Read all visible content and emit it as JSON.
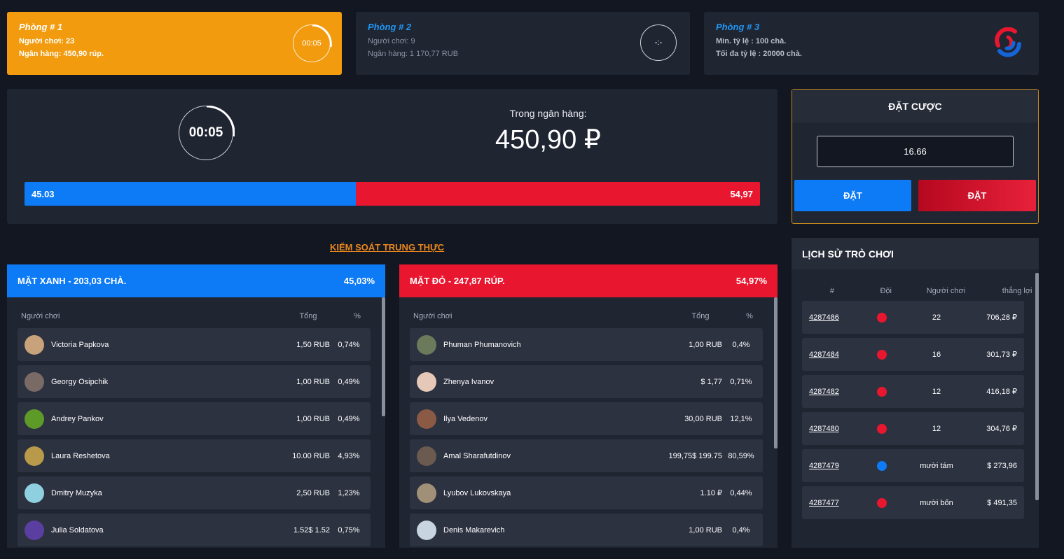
{
  "rooms": [
    {
      "title": "Phòng # 1",
      "line1": "Người chơi: 23",
      "line2": "Ngân hàng: 450,90 rúp.",
      "timer": "00:05"
    },
    {
      "title": "Phòng # 2",
      "line1": "Người chơi: 9",
      "line2": "Ngân hàng: 1 170,77 RUB",
      "timer": "-:-"
    },
    {
      "title": "Phòng # 3",
      "line1": "Min. tỷ lệ : 100 chà.",
      "line2": "Tối đa tỷ lệ : 20000 chà."
    }
  ],
  "main": {
    "timer": "00:05",
    "bank_label": "Trong ngân hàng:",
    "bank_value": "450,90 ₽",
    "blue_value": "45.03",
    "red_value": "54,97",
    "blue_fraction": 0.4503
  },
  "bet": {
    "title": "ĐẶT CƯỢC",
    "amount": "16.66",
    "blue_button": "ĐẶT",
    "red_button": "ĐẶT"
  },
  "honest_link": "KIỂM SOÁT TRUNG THỰC",
  "teams": {
    "blue": {
      "title": "MẶT XANH - 203,03 CHÀ.",
      "percent": "45,03%",
      "col_player": "Người chơi",
      "col_total": "Tổng",
      "col_pct": "%",
      "players": [
        {
          "name": "Victoria Papkova",
          "total": "1,50 RUB",
          "pct": "0,74%",
          "color": "#c8a27a"
        },
        {
          "name": "Georgy Osipchik",
          "total": "1,00 RUB",
          "pct": "0,49%",
          "color": "#7a6a66"
        },
        {
          "name": "Andrey Pankov",
          "total": "1,00 RUB",
          "pct": "0,49%",
          "color": "#5e9a28"
        },
        {
          "name": "Laura Reshetova",
          "total": "10.00 RUB",
          "pct": "4,93%",
          "color": "#b89a4a"
        },
        {
          "name": "Dmitry Muzyka",
          "total": "2,50 RUB",
          "pct": "1,23%",
          "color": "#8fd0e0"
        },
        {
          "name": "Julia Soldatova",
          "total": "1.52$ 1.52",
          "pct": "0,75%",
          "color": "#5a3fa0"
        }
      ]
    },
    "red": {
      "title": "MẶT ĐỎ - 247,87 RÚP.",
      "percent": "54,97%",
      "col_player": "Người chơi",
      "col_total": "Tổng",
      "col_pct": "%",
      "players": [
        {
          "name": "Phuman Phumanovich",
          "total": "1,00 RUB",
          "pct": "0,4%",
          "color": "#6b7a5a"
        },
        {
          "name": "Zhenya Ivanov",
          "total": "$ 1,77",
          "pct": "0,71%",
          "color": "#e6c8b8"
        },
        {
          "name": "Ilya Vedenov",
          "total": "30,00 RUB",
          "pct": "12,1%",
          "color": "#8a5a44"
        },
        {
          "name": "Amal Sharafutdinov",
          "total": "199,75$ 199.75",
          "pct": "80,59%",
          "color": "#6a5a50"
        },
        {
          "name": "Lyubov Lukovskaya",
          "total": "1.10 ₽",
          "pct": "0,44%",
          "color": "#a09078"
        },
        {
          "name": "Denis Makarevich",
          "total": "1,00 RUB",
          "pct": "0,4%",
          "color": "#c8d4e0"
        }
      ]
    }
  },
  "history": {
    "title": "LỊCH SỬ TRÒ CHƠI",
    "col_id": "#",
    "col_team": "Đội",
    "col_players": "Người chơi",
    "col_win": "thắng lợi",
    "rows": [
      {
        "id": "4287486",
        "team": "red",
        "players": "22",
        "win": "706,28 ₽"
      },
      {
        "id": "4287484",
        "team": "red",
        "players": "16",
        "win": "301,73 ₽"
      },
      {
        "id": "4287482",
        "team": "red",
        "players": "12",
        "win": "416,18 ₽"
      },
      {
        "id": "4287480",
        "team": "red",
        "players": "12",
        "win": "304,76 ₽"
      },
      {
        "id": "4287479",
        "team": "blue",
        "players": "mười tám",
        "win": "$ 273,96"
      },
      {
        "id": "4287477",
        "team": "red",
        "players": "mười bốn",
        "win": "$ 491,35"
      }
    ]
  },
  "colors": {
    "blue": "#0d7bf5",
    "red": "#e8172f",
    "accent": "#f29b0f"
  }
}
